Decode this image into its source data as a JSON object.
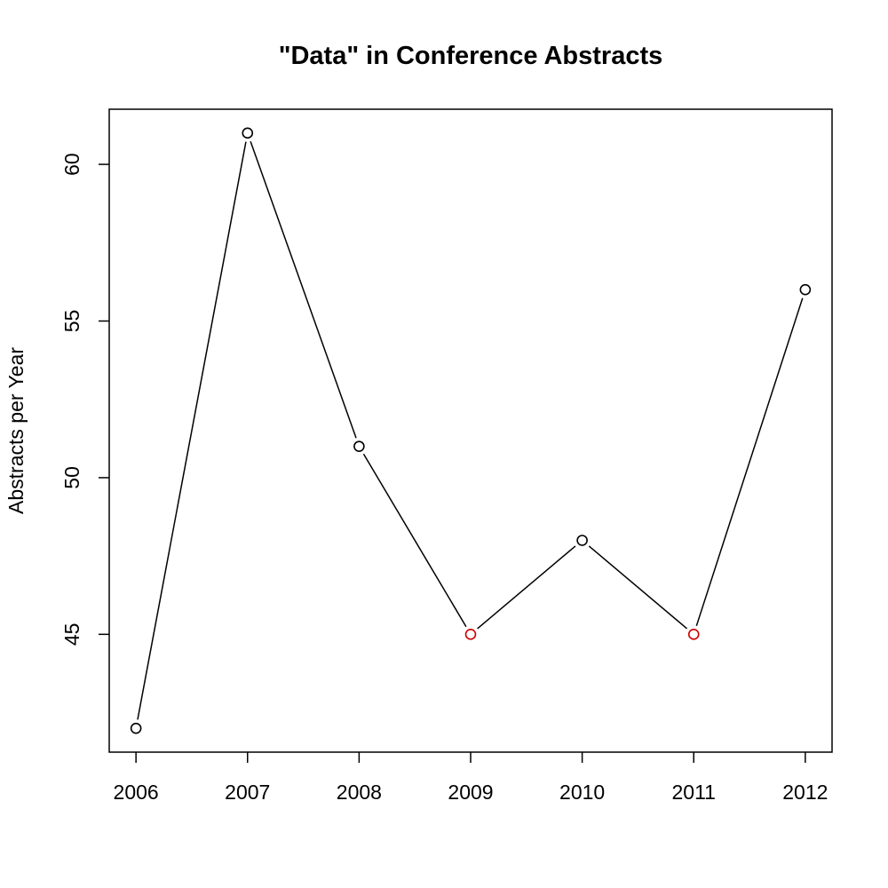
{
  "chart_data": {
    "type": "line",
    "title": "\"Data\" in Conference Abstracts",
    "xlabel": "",
    "ylabel": "Abstracts per Year",
    "x": [
      "2006",
      "2007",
      "2008",
      "2009",
      "2010",
      "2011",
      "2012"
    ],
    "series": [
      {
        "values": [
          42,
          61,
          51,
          45,
          48,
          45,
          56
        ],
        "point_colors": [
          "#000000",
          "#000000",
          "#000000",
          "#cc0000",
          "#000000",
          "#cc0000",
          "#000000"
        ]
      }
    ],
    "yticks": [
      45,
      50,
      55,
      60
    ],
    "ylim": [
      41.24,
      61.76
    ],
    "xlim": [
      2005.76,
      2012.24
    ],
    "line_color": "#000000",
    "marker": "open-circle",
    "grid": false,
    "legend": "none"
  }
}
